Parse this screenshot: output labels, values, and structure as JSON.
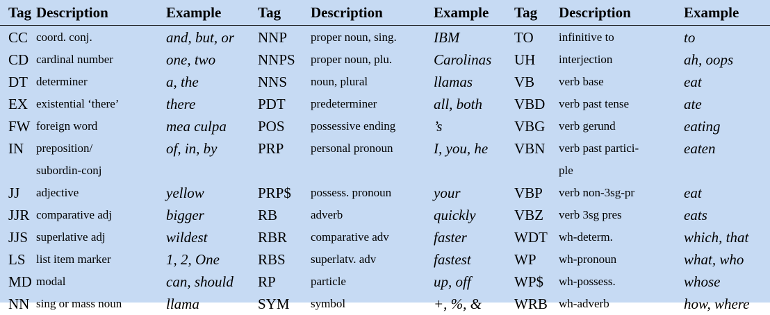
{
  "headers": [
    "Tag",
    "Description",
    "Example",
    "Tag",
    "Description",
    "Example",
    "Tag",
    "Description",
    "Example"
  ],
  "rows": [
    [
      "CC",
      "coord. conj.",
      "and, but, or",
      "NNP",
      "proper noun, sing.",
      "IBM",
      "TO",
      "infinitive to",
      "to"
    ],
    [
      "CD",
      "cardinal number",
      "one, two",
      "NNPS",
      "proper noun, plu.",
      "Carolinas",
      "UH",
      "interjection",
      "ah, oops"
    ],
    [
      "DT",
      "determiner",
      "a, the",
      "NNS",
      "noun, plural",
      "llamas",
      "VB",
      "verb base",
      "eat"
    ],
    [
      "EX",
      "existential ‘there’",
      "there",
      "PDT",
      "predeterminer",
      "all, both",
      "VBD",
      "verb past tense",
      "ate"
    ],
    [
      "FW",
      "foreign word",
      "mea culpa",
      "POS",
      "possessive ending",
      "’s",
      "VBG",
      "verb gerund",
      "eating"
    ],
    [
      "IN",
      "preposition/",
      "of, in, by",
      "PRP",
      "personal pronoun",
      "I, you, he",
      "VBN",
      "verb past partici-",
      "eaten"
    ],
    [
      "",
      "subordin-conj",
      "",
      "",
      "",
      "",
      "",
      "ple",
      ""
    ],
    [
      "JJ",
      "adjective",
      "yellow",
      "PRP$",
      "possess. pronoun",
      "your",
      "VBP",
      "verb non-3sg-pr",
      "eat"
    ],
    [
      "JJR",
      "comparative adj",
      "bigger",
      "RB",
      "adverb",
      "quickly",
      "VBZ",
      "verb 3sg pres",
      "eats"
    ],
    [
      "JJS",
      "superlative adj",
      "wildest",
      "RBR",
      "comparative adv",
      "faster",
      "WDT",
      "wh-determ.",
      "which, that"
    ],
    [
      "LS",
      "list item marker",
      "1, 2, One",
      "RBS",
      "superlatv. adv",
      "fastest",
      "WP",
      "wh-pronoun",
      "what, who"
    ],
    [
      "MD",
      "modal",
      "can, should",
      "RP",
      "particle",
      "up, off",
      "WP$",
      "wh-possess.",
      "whose"
    ],
    [
      "NN",
      "sing or mass noun",
      "llama",
      "SYM",
      "symbol",
      "+, %, &",
      "WRB",
      "wh-adverb",
      "how, where"
    ]
  ]
}
